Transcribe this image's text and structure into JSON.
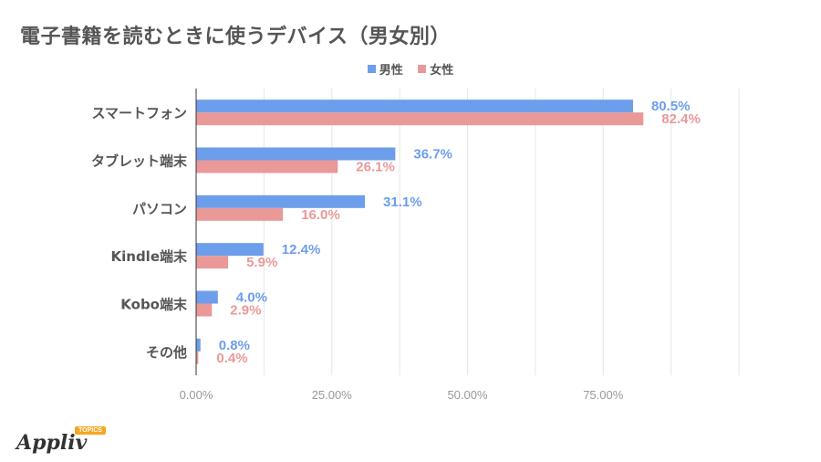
{
  "chart_data": {
    "type": "bar",
    "orientation": "horizontal",
    "title": "電子書籍を読むときに使うデバイス（男女別）",
    "categories": [
      "スマートフォン",
      "タブレット端末",
      "パソコン",
      "Kindle端末",
      "Kobo端末",
      "その他"
    ],
    "series": [
      {
        "name": "男性",
        "color": "#6d9eeb",
        "values": [
          80.5,
          36.7,
          31.1,
          12.4,
          4.0,
          0.8
        ],
        "labels": [
          "80.5%",
          "36.7%",
          "31.1%",
          "12.4%",
          "4.0%",
          "0.8%"
        ]
      },
      {
        "name": "女性",
        "color": "#ea9999",
        "values": [
          82.4,
          26.1,
          16.0,
          5.9,
          2.9,
          0.4
        ],
        "labels": [
          "82.4%",
          "26.1%",
          "16.0%",
          "5.9%",
          "2.9%",
          "0.4%"
        ]
      }
    ],
    "xlim": [
      0,
      100
    ],
    "xticks": [
      0,
      25,
      50,
      75
    ],
    "xtick_labels": [
      "0.00%",
      "25.00%",
      "50.00%",
      "75.00%"
    ],
    "grid": true,
    "legend_position": "top"
  },
  "logo": {
    "text": "Appliv",
    "badge": "TOPICS"
  }
}
